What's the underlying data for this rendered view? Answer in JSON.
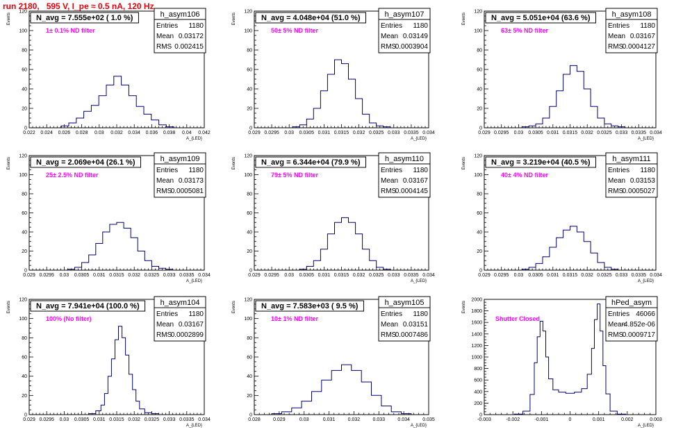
{
  "page_title": "run 2180,   595 V, I_pe ≈ 0.5 nA, 120 Hz",
  "colors": {
    "title": "#e8000b",
    "histogram": "#00006e",
    "filter_label": "#ff00ff"
  },
  "chart_data": [
    {
      "type": "histogram",
      "name": "h_asym106",
      "title": "N_avg = 7.555e+02 ( 1.0 %)",
      "annotation": "1± 0.1% ND filter",
      "stats": {
        "entries": "1180",
        "mean": "0.03172",
        "rms": "0.002415"
      },
      "xlabel": "A_{LED}",
      "ylabel": "Events",
      "xlim": [
        0.021,
        0.042
      ],
      "ylim": [
        0,
        120
      ],
      "xticks": [
        "0.022",
        "0.024",
        "0.026",
        "0.028",
        "0.03",
        "0.032",
        "0.034",
        "0.036",
        "0.038",
        "0.04",
        "0.042"
      ],
      "yticks": [
        "0",
        "20",
        "40",
        "60",
        "80",
        "100",
        "120"
      ],
      "x": [
        0.0253,
        0.0262,
        0.0271,
        0.028,
        0.0289,
        0.0298,
        0.0307,
        0.0316,
        0.0325,
        0.0334,
        0.0343,
        0.0352,
        0.0361,
        0.037,
        0.0379
      ],
      "values": [
        2,
        5,
        10,
        17,
        23,
        33,
        44,
        53,
        44,
        33,
        22,
        14,
        8,
        3,
        1
      ]
    },
    {
      "type": "histogram",
      "name": "h_asym107",
      "title": "N_avg = 4.048e+04 (51.0 %)",
      "annotation": "50± 5% ND filter",
      "stats": {
        "entries": "1180",
        "mean": "0.03149",
        "rms": "0.0003904"
      },
      "xlabel": "A_{LED}",
      "ylabel": "Events",
      "xlim": [
        0.029,
        0.034
      ],
      "ylim": [
        0,
        120
      ],
      "xticks": [
        "0.029",
        "0.0295",
        "0.03",
        "0.0305",
        "0.031",
        "0.0315",
        "0.032",
        "0.0325",
        "0.033",
        "0.0335",
        "0.034"
      ],
      "yticks": [
        "0",
        "20",
        "40",
        "60",
        "80",
        "100",
        "120"
      ],
      "x": [
        0.0302,
        0.0304,
        0.0306,
        0.0308,
        0.031,
        0.0312,
        0.0314,
        0.0316,
        0.0318,
        0.032,
        0.0322,
        0.0324,
        0.0326,
        0.0328
      ],
      "values": [
        1,
        3,
        9,
        20,
        38,
        55,
        70,
        66,
        50,
        30,
        14,
        5,
        2,
        1
      ]
    },
    {
      "type": "histogram",
      "name": "h_asym108",
      "title": "N_avg = 5.051e+04 (63.6 %)",
      "annotation": "63± 5% ND filter",
      "stats": {
        "entries": "1180",
        "mean": "0.03167",
        "rms": "0.0004127"
      },
      "xlabel": "A_{LED}",
      "ylabel": "Events",
      "xlim": [
        0.029,
        0.034
      ],
      "ylim": [
        0,
        120
      ],
      "xticks": [
        "0.029",
        "0.0295",
        "0.03",
        "0.0305",
        "0.031",
        "0.0315",
        "0.032",
        "0.0325",
        "0.033",
        "0.0335",
        "0.034"
      ],
      "yticks": [
        "0",
        "20",
        "40",
        "60",
        "80",
        "100",
        "120"
      ],
      "x": [
        0.0302,
        0.0304,
        0.0306,
        0.0308,
        0.031,
        0.0312,
        0.0314,
        0.0316,
        0.0318,
        0.032,
        0.0322,
        0.0324,
        0.0326,
        0.0328,
        0.033
      ],
      "values": [
        1,
        2,
        4,
        10,
        22,
        38,
        55,
        64,
        58,
        40,
        22,
        10,
        4,
        2,
        1
      ]
    },
    {
      "type": "histogram",
      "name": "h_asym109",
      "title": "N_avg = 2.069e+04 (26.1 %)",
      "annotation": "25± 2.5% ND filter",
      "stats": {
        "entries": "1180",
        "mean": "0.03173",
        "rms": "0.0005081"
      },
      "xlabel": "A_{LED}",
      "ylabel": "Events",
      "xlim": [
        0.029,
        0.034
      ],
      "ylim": [
        0,
        120
      ],
      "xticks": [
        "0.029",
        "0.0295",
        "0.03",
        "0.0305",
        "0.031",
        "0.0315",
        "0.032",
        "0.0325",
        "0.033",
        "0.0335",
        "0.034"
      ],
      "yticks": [
        "0",
        "20",
        "40",
        "60",
        "80",
        "100",
        "120"
      ],
      "x": [
        0.0302,
        0.0304,
        0.0306,
        0.0308,
        0.031,
        0.0312,
        0.0314,
        0.0316,
        0.0318,
        0.032,
        0.0322,
        0.0324,
        0.0326,
        0.0328,
        0.033
      ],
      "values": [
        1,
        3,
        8,
        16,
        28,
        40,
        48,
        50,
        44,
        34,
        20,
        10,
        4,
        2,
        1
      ]
    },
    {
      "type": "histogram",
      "name": "h_asym110",
      "title": "N_avg = 6.344e+04 (79.9 %)",
      "annotation": "79± 5% ND filter",
      "stats": {
        "entries": "1180",
        "mean": "0.03167",
        "rms": "0.0004145"
      },
      "xlabel": "A_{LED}",
      "ylabel": "Events",
      "xlim": [
        0.029,
        0.034
      ],
      "ylim": [
        0,
        120
      ],
      "xticks": [
        "0.029",
        "0.0295",
        "0.03",
        "0.0305",
        "0.031",
        "0.0315",
        "0.032",
        "0.0325",
        "0.033",
        "0.0335",
        "0.034"
      ],
      "yticks": [
        "0",
        "20",
        "40",
        "60",
        "80",
        "100",
        "120"
      ],
      "x": [
        0.0304,
        0.0306,
        0.0308,
        0.031,
        0.0312,
        0.0314,
        0.0316,
        0.0318,
        0.032,
        0.0322,
        0.0324,
        0.0326,
        0.0328
      ],
      "values": [
        1,
        4,
        10,
        22,
        38,
        50,
        55,
        50,
        38,
        22,
        10,
        3,
        1
      ]
    },
    {
      "type": "histogram",
      "name": "h_asym111",
      "title": "N_avg = 3.219e+04 (40.5 %)",
      "annotation": "40± 4% ND filter",
      "stats": {
        "entries": "1180",
        "mean": "0.03153",
        "rms": "0.0005027"
      },
      "xlabel": "A_{LED}",
      "ylabel": "Events",
      "xlim": [
        0.029,
        0.034
      ],
      "ylim": [
        0,
        120
      ],
      "xticks": [
        "0.029",
        "0.0295",
        "0.03",
        "0.0305",
        "0.031",
        "0.0315",
        "0.032",
        "0.0325",
        "0.033",
        "0.0335",
        "0.034"
      ],
      "yticks": [
        "0",
        "20",
        "40",
        "60",
        "80",
        "100",
        "120"
      ],
      "x": [
        0.0302,
        0.0304,
        0.0306,
        0.0308,
        0.031,
        0.0312,
        0.0314,
        0.0316,
        0.0318,
        0.032,
        0.0322,
        0.0324,
        0.0326,
        0.0328
      ],
      "values": [
        1,
        3,
        7,
        14,
        24,
        34,
        42,
        46,
        40,
        30,
        18,
        8,
        3,
        1
      ]
    },
    {
      "type": "histogram",
      "name": "h_asym104",
      "title": "N_avg = 7.941e+04 (100.0 %)",
      "annotation": "100% (No filter)",
      "stats": {
        "entries": "1180",
        "mean": "0.03167",
        "rms": "0.0002899"
      },
      "xlabel": "A_{LED}",
      "ylabel": "Events",
      "xlim": [
        0.029,
        0.034
      ],
      "ylim": [
        0,
        120
      ],
      "xticks": [
        "0.029",
        "0.0295",
        "0.03",
        "0.0305",
        "0.031",
        "0.0315",
        "0.032",
        "0.0325",
        "0.033",
        "0.0335",
        "0.034"
      ],
      "yticks": [
        "0",
        "20",
        "40",
        "60",
        "80",
        "100",
        "120"
      ],
      "x": [
        0.0308,
        0.031,
        0.0311,
        0.0312,
        0.0313,
        0.0314,
        0.0315,
        0.0316,
        0.0317,
        0.0318,
        0.0319,
        0.032,
        0.0321,
        0.0322,
        0.0324,
        0.0326
      ],
      "values": [
        1,
        4,
        10,
        22,
        40,
        58,
        78,
        92,
        80,
        62,
        42,
        26,
        14,
        6,
        2,
        1
      ]
    },
    {
      "type": "histogram",
      "name": "h_asym105",
      "title": "N_avg = 7.583e+03 ( 9.5 %)",
      "annotation": "10± 1% ND filter",
      "stats": {
        "entries": "1180",
        "mean": "0.03151",
        "rms": "0.0007486"
      },
      "xlabel": "A_{LED}",
      "ylabel": "Events",
      "xlim": [
        0.028,
        0.035
      ],
      "ylim": [
        0,
        120
      ],
      "xticks": [
        "0.028",
        "0.029",
        "0.03",
        "0.031",
        "0.032",
        "0.033",
        "0.034",
        "0.035"
      ],
      "yticks": [
        "0",
        "20",
        "40",
        "60",
        "80",
        "100",
        "120"
      ],
      "x": [
        0.0289,
        0.0293,
        0.0297,
        0.0301,
        0.0305,
        0.0309,
        0.0313,
        0.0317,
        0.0321,
        0.0325,
        0.0329,
        0.0333,
        0.0337,
        0.0341
      ],
      "values": [
        1,
        3,
        7,
        14,
        24,
        36,
        46,
        52,
        46,
        34,
        20,
        9,
        3,
        1
      ]
    },
    {
      "type": "histogram",
      "name": "hPed_asym",
      "title": "",
      "annotation": "Shutter Closed",
      "stats": {
        "entries": "46066",
        "mean": "-4.852e-06",
        "rms": "0.0009717"
      },
      "xlabel": "A_{LED}",
      "ylabel": "Events",
      "xlim": [
        -0.003,
        0.003
      ],
      "ylim": [
        0,
        2000
      ],
      "xticks": [
        "-0.003",
        "-0.002",
        "-0.001",
        "0",
        "0.001",
        "0.002",
        "0.003"
      ],
      "yticks": [
        "0",
        "200",
        "400",
        "600",
        "800",
        "1000",
        "1200",
        "1400",
        "1600",
        "1800",
        "2000"
      ],
      "x": [
        -0.0018,
        -0.0015,
        -0.0013,
        -0.0012,
        -0.0011,
        -0.001,
        -0.0009,
        -0.0008,
        -0.0007,
        -0.0005,
        -0.0003,
        0,
        0.0003,
        0.0005,
        0.0007,
        0.0008,
        0.0009,
        0.001,
        0.0011,
        0.0012,
        0.0013,
        0.0015,
        0.0018
      ],
      "values": [
        10,
        60,
        350,
        900,
        1350,
        1620,
        1450,
        1000,
        620,
        430,
        390,
        370,
        390,
        450,
        700,
        1150,
        1650,
        1920,
        1450,
        850,
        360,
        60,
        10
      ]
    }
  ]
}
